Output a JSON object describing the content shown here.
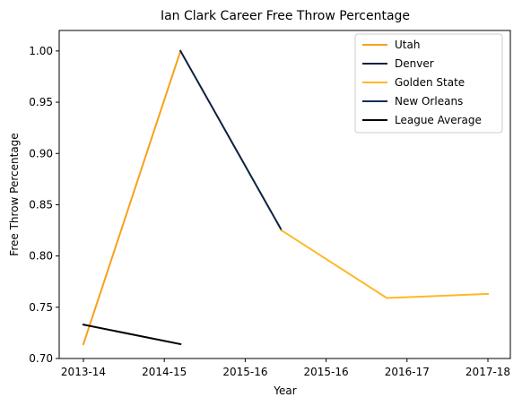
{
  "chart_data": {
    "type": "line",
    "title": "Ian Clark  Career Free Throw Percentage",
    "xlabel": "Year",
    "ylabel": "Free Throw Percentage",
    "categories": [
      "2013-14",
      "2014-15",
      "2015-16",
      "2015-16",
      "2016-17",
      "2017-18"
    ],
    "ylim": [
      0.7,
      1.02
    ],
    "yticks": [
      0.7,
      0.75,
      0.8,
      0.85,
      0.9,
      0.95,
      1.0
    ],
    "ytick_labels": [
      "0.70",
      "0.75",
      "0.80",
      "0.85",
      "0.90",
      "0.95",
      "1.00"
    ],
    "grid": false,
    "legend_position": "top-right",
    "series": [
      {
        "name": "Utah",
        "color": "#F9A01B",
        "points": [
          [
            0,
            0.714
          ],
          [
            1.2,
            1.0
          ]
        ]
      },
      {
        "name": "Denver",
        "color": "#0E2240",
        "points": [
          [
            1.2,
            1.0
          ],
          [
            2.45,
            0.825
          ]
        ]
      },
      {
        "name": "Golden State",
        "color": "#FDB927",
        "points": [
          [
            2.45,
            0.825
          ],
          [
            3.75,
            0.759
          ],
          [
            5,
            0.763
          ]
        ]
      },
      {
        "name": "New Orleans",
        "color": "#0C2C56",
        "points": []
      },
      {
        "name": "League Average",
        "color": "#000000",
        "points": [
          [
            0,
            0.733
          ],
          [
            1.2,
            0.714
          ]
        ]
      }
    ]
  }
}
